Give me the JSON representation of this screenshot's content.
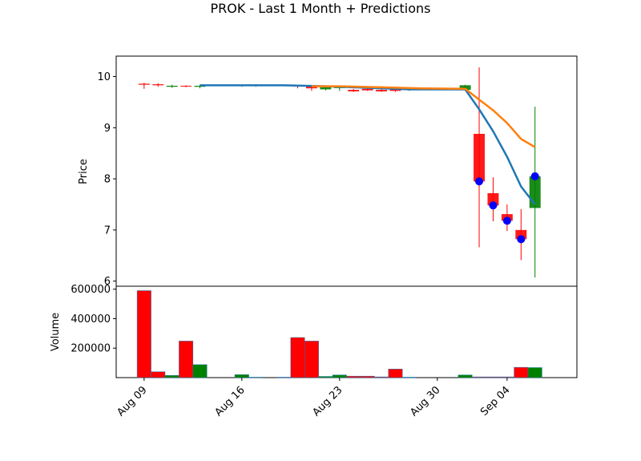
{
  "chart_data": {
    "type": "candlestick",
    "title": "PROK - Last 1 Month + Predictions",
    "price_panel": {
      "ylabel": "Price",
      "ylim": [
        5.9,
        10.4
      ],
      "yticks": [
        6,
        7,
        8,
        9,
        10
      ]
    },
    "volume_panel": {
      "ylabel": "Volume",
      "ylim": [
        0,
        620000
      ],
      "yticks": [
        200000,
        400000,
        600000
      ],
      "ytick_labels": [
        "200000",
        "400000",
        "600000"
      ]
    },
    "x_axis": {
      "xlim": [
        "2021-08-07",
        "2021-09-09"
      ],
      "ticks": [
        {
          "date": "2021-08-09",
          "label": "Aug 09"
        },
        {
          "date": "2021-08-16",
          "label": "Aug 16"
        },
        {
          "date": "2021-08-23",
          "label": "Aug 23"
        },
        {
          "date": "2021-08-30",
          "label": "Aug 30"
        },
        {
          "date": "2021-09-04",
          "label": "Sep 04"
        }
      ]
    },
    "colors": {
      "up": "#008000",
      "down": "#ff0000",
      "line_blue": "#1f77b4",
      "line_orange": "#ff7f0e",
      "marker": "#0000ff",
      "volume_edge": "#1f77b4"
    },
    "candles": [
      {
        "date": "2021-08-09",
        "open": 9.86,
        "high": 9.88,
        "low": 9.76,
        "close": 9.84,
        "volume": 590000
      },
      {
        "date": "2021-08-10",
        "open": 9.85,
        "high": 9.87,
        "low": 9.8,
        "close": 9.83,
        "volume": 40000
      },
      {
        "date": "2021-08-11",
        "open": 9.8,
        "high": 9.84,
        "low": 9.78,
        "close": 9.82,
        "volume": 15000
      },
      {
        "date": "2021-08-12",
        "open": 9.82,
        "high": 9.83,
        "low": 9.79,
        "close": 9.81,
        "volume": 248000
      },
      {
        "date": "2021-08-13",
        "open": 9.8,
        "high": 9.84,
        "low": 9.77,
        "close": 9.82,
        "volume": 88000
      },
      {
        "date": "2021-08-16",
        "open": 9.82,
        "high": 9.84,
        "low": 9.8,
        "close": 9.83,
        "volume": 20000
      },
      {
        "date": "2021-08-17",
        "open": 9.82,
        "high": 9.84,
        "low": 9.8,
        "close": 9.83,
        "volume": 3000
      },
      {
        "date": "2021-08-19",
        "open": 9.83,
        "high": 9.84,
        "low": 9.81,
        "close": 9.82,
        "volume": 3000
      },
      {
        "date": "2021-08-20",
        "open": 9.83,
        "high": 9.84,
        "low": 9.77,
        "close": 9.81,
        "volume": 272000
      },
      {
        "date": "2021-08-21",
        "open": 9.81,
        "high": 9.83,
        "low": 9.72,
        "close": 9.77,
        "volume": 248000
      },
      {
        "date": "2021-08-22",
        "open": 9.75,
        "high": 9.81,
        "low": 9.73,
        "close": 9.79,
        "volume": 8000
      },
      {
        "date": "2021-08-23",
        "open": 9.78,
        "high": 9.8,
        "low": 9.72,
        "close": 9.79,
        "volume": 18000
      },
      {
        "date": "2021-08-24",
        "open": 9.74,
        "high": 9.76,
        "low": 9.7,
        "close": 9.71,
        "volume": 10000
      },
      {
        "date": "2021-08-25",
        "open": 9.76,
        "high": 9.78,
        "low": 9.72,
        "close": 9.73,
        "volume": 10000
      },
      {
        "date": "2021-08-26",
        "open": 9.74,
        "high": 9.76,
        "low": 9.7,
        "close": 9.71,
        "volume": 5000
      },
      {
        "date": "2021-08-27",
        "open": 9.75,
        "high": 9.77,
        "low": 9.7,
        "close": 9.72,
        "volume": 58000
      },
      {
        "date": "2021-08-28",
        "open": 9.74,
        "high": 9.76,
        "low": 9.72,
        "close": 9.75,
        "volume": 3000
      },
      {
        "date": "2021-09-01",
        "open": 9.74,
        "high": 9.84,
        "low": 9.73,
        "close": 9.83,
        "volume": 18000
      },
      {
        "date": "2021-09-02",
        "open": 8.88,
        "high": 10.18,
        "low": 6.66,
        "close": 7.95,
        "volume": 5000
      },
      {
        "date": "2021-09-03",
        "open": 7.72,
        "high": 8.03,
        "low": 7.17,
        "close": 7.48,
        "volume": 5000
      },
      {
        "date": "2021-09-04",
        "open": 7.31,
        "high": 7.5,
        "low": 6.98,
        "close": 7.18,
        "volume": 5000
      },
      {
        "date": "2021-09-05",
        "open": 7.0,
        "high": 7.41,
        "low": 6.41,
        "close": 6.82,
        "volume": 70000
      },
      {
        "date": "2021-09-06",
        "open": 7.43,
        "high": 9.41,
        "low": 6.07,
        "close": 8.05,
        "volume": 68000
      }
    ],
    "series": [
      {
        "color": "#1f77b4",
        "x": [
          "2021-08-13",
          "2021-08-16",
          "2021-08-19",
          "2021-08-22",
          "2021-08-25",
          "2021-08-28",
          "2021-09-01",
          "2021-09-02",
          "2021-09-03",
          "2021-09-04",
          "2021-09-05",
          "2021-09-06"
        ],
        "y": [
          9.83,
          9.83,
          9.83,
          9.81,
          9.78,
          9.75,
          9.75,
          9.36,
          8.93,
          8.43,
          7.85,
          7.5
        ]
      },
      {
        "color": "#ff7f0e",
        "x": [
          "2021-08-21",
          "2021-08-23",
          "2021-08-26",
          "2021-08-29",
          "2021-09-01",
          "2021-09-02",
          "2021-09-03",
          "2021-09-04",
          "2021-09-05",
          "2021-09-06"
        ],
        "y": [
          9.81,
          9.81,
          9.79,
          9.77,
          9.76,
          9.55,
          9.34,
          9.09,
          8.78,
          8.62
        ]
      }
    ],
    "markers": {
      "color": "#0000ff",
      "points": [
        {
          "date": "2021-09-02",
          "value": 7.95
        },
        {
          "date": "2021-09-03",
          "value": 7.48
        },
        {
          "date": "2021-09-04",
          "value": 7.18
        },
        {
          "date": "2021-09-05",
          "value": 6.82
        },
        {
          "date": "2021-09-06",
          "value": 8.05
        }
      ]
    }
  }
}
